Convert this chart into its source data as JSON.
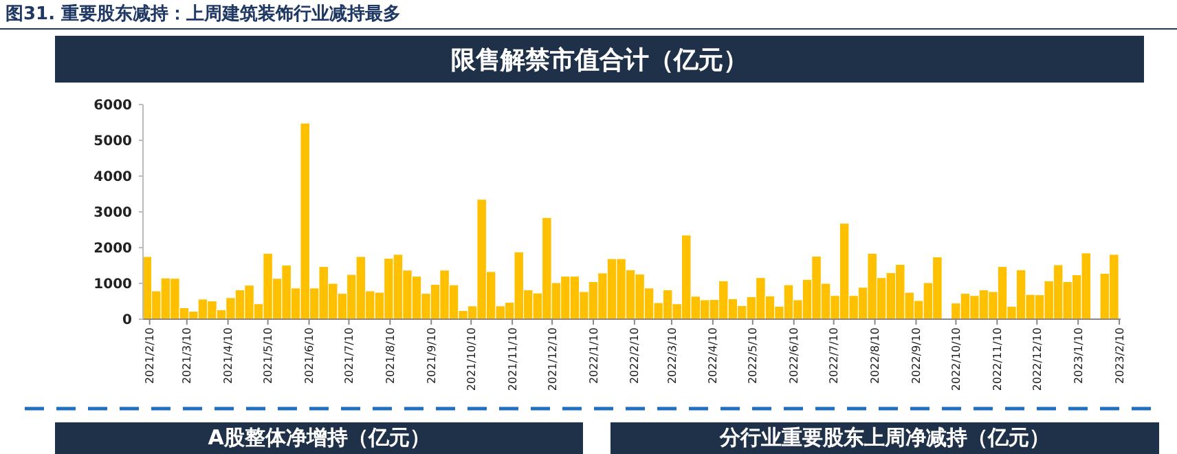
{
  "chart_data": {
    "type": "bar",
    "title": "图31. 重要股东减持：上周建筑装饰行业减持最多",
    "subtitle": "限售解禁市值合计（亿元）",
    "annotations": [
      "A股整体净增持（亿元）",
      "分行业重要股东上周净减持（亿元）"
    ],
    "x": [
      "2021-02-08",
      "2021-02-15",
      "2021-02-22",
      "2021-03-01",
      "2021-03-08",
      "2021-03-15",
      "2021-03-22",
      "2021-03-29",
      "2021-04-05",
      "2021-04-12",
      "2021-04-19",
      "2021-04-26",
      "2021-05-03",
      "2021-05-10",
      "2021-05-17",
      "2021-05-24",
      "2021-05-31",
      "2021-06-07",
      "2021-06-14",
      "2021-06-21",
      "2021-06-28",
      "2021-07-05",
      "2021-07-12",
      "2021-07-19",
      "2021-07-26",
      "2021-08-02",
      "2021-08-09",
      "2021-08-16",
      "2021-08-23",
      "2021-08-30",
      "2021-09-06",
      "2021-09-13",
      "2021-09-20",
      "2021-09-27",
      "2021-10-04",
      "2021-10-11",
      "2021-10-18",
      "2021-10-25",
      "2021-11-01",
      "2021-11-08",
      "2021-11-15",
      "2021-11-22",
      "2021-11-29",
      "2021-12-06",
      "2021-12-13",
      "2021-12-20",
      "2021-12-27",
      "2022-01-03",
      "2022-01-10",
      "2022-01-17",
      "2022-01-24",
      "2022-01-31",
      "2022-02-07",
      "2022-02-14",
      "2022-02-21",
      "2022-02-28",
      "2022-03-07",
      "2022-03-14",
      "2022-03-21",
      "2022-03-28",
      "2022-04-04",
      "2022-04-11",
      "2022-04-18",
      "2022-04-25",
      "2022-05-02",
      "2022-05-09",
      "2022-05-16",
      "2022-05-23",
      "2022-05-30",
      "2022-06-06",
      "2022-06-13",
      "2022-06-20",
      "2022-06-27",
      "2022-07-04",
      "2022-07-11",
      "2022-07-18",
      "2022-07-25",
      "2022-08-01",
      "2022-08-08",
      "2022-08-15",
      "2022-08-22",
      "2022-08-29",
      "2022-09-05",
      "2022-09-12",
      "2022-09-19",
      "2022-09-26",
      "2022-10-03",
      "2022-10-10",
      "2022-10-17",
      "2022-10-24",
      "2022-10-31",
      "2022-11-07",
      "2022-11-14",
      "2022-11-21",
      "2022-11-28",
      "2022-12-05",
      "2022-12-12",
      "2022-12-19",
      "2022-12-26",
      "2023-01-02",
      "2023-01-09",
      "2023-01-16",
      "2023-01-23",
      "2023-01-30",
      "2023-02-06"
    ],
    "values": [
      1750,
      790,
      1150,
      1140,
      320,
      220,
      560,
      510,
      260,
      600,
      820,
      950,
      430,
      1840,
      1140,
      1510,
      870,
      5480,
      870,
      1470,
      1000,
      720,
      1250,
      1750,
      790,
      750,
      1700,
      1810,
      1370,
      1200,
      720,
      970,
      1370,
      960,
      240,
      370,
      3350,
      1330,
      370,
      470,
      1880,
      820,
      730,
      2840,
      1020,
      1200,
      1200,
      770,
      1050,
      1290,
      1690,
      1690,
      1380,
      1260,
      870,
      460,
      820,
      430,
      2350,
      640,
      540,
      550,
      1070,
      570,
      380,
      630,
      1160,
      650,
      360,
      960,
      540,
      1110,
      1760,
      1000,
      660,
      2680,
      660,
      890,
      1840,
      1160,
      1300,
      1530,
      750,
      520,
      1020,
      1740,
      null,
      450,
      720,
      660,
      820,
      770,
      1470,
      360,
      1380,
      690,
      680,
      1070,
      1520,
      1050,
      1240,
      1850,
      null,
      1280,
      1810
    ],
    "color": "#ffc000",
    "xlim": [
      "2021-02-05",
      "2023-02-11"
    ],
    "ylim": [
      0,
      6000
    ],
    "yticks": [
      0,
      1000,
      2000,
      3000,
      4000,
      5000,
      6000
    ],
    "xticks": [
      {
        "value": "2021-02-10",
        "label": "2021/2/10"
      },
      {
        "value": "2021-03-10",
        "label": "2021/3/10"
      },
      {
        "value": "2021-04-10",
        "label": "2021/4/10"
      },
      {
        "value": "2021-05-10",
        "label": "2021/5/10"
      },
      {
        "value": "2021-06-10",
        "label": "2021/6/10"
      },
      {
        "value": "2021-07-10",
        "label": "2021/7/10"
      },
      {
        "value": "2021-08-10",
        "label": "2021/8/10"
      },
      {
        "value": "2021-09-10",
        "label": "2021/9/10"
      },
      {
        "value": "2021-10-10",
        "label": "2021/10/10"
      },
      {
        "value": "2021-11-10",
        "label": "2021/11/10"
      },
      {
        "value": "2021-12-10",
        "label": "2021/12/10"
      },
      {
        "value": "2022-01-10",
        "label": "2022/1/10"
      },
      {
        "value": "2022-02-10",
        "label": "2022/2/10"
      },
      {
        "value": "2022-03-10",
        "label": "2022/3/10"
      },
      {
        "value": "2022-04-10",
        "label": "2022/4/10"
      },
      {
        "value": "2022-05-10",
        "label": "2022/5/10"
      },
      {
        "value": "2022-06-10",
        "label": "2022/6/10"
      },
      {
        "value": "2022-07-10",
        "label": "2022/7/10"
      },
      {
        "value": "2022-08-10",
        "label": "2022/8/10"
      },
      {
        "value": "2022-09-10",
        "label": "2022/9/10"
      },
      {
        "value": "2022-10-10",
        "label": "2022/10/10"
      },
      {
        "value": "2022-11-10",
        "label": "2022/11/10"
      },
      {
        "value": "2022-12-10",
        "label": "2022/12/10"
      },
      {
        "value": "2023-01-10",
        "label": "2023/1/10"
      },
      {
        "value": "2023-02-10",
        "label": "2023/2/10"
      }
    ],
    "grid": false
  }
}
